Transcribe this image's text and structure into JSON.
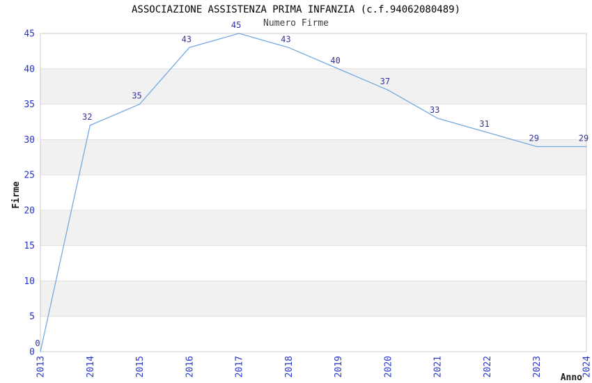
{
  "chart_data": {
    "type": "line",
    "title": "ASSOCIAZIONE ASSISTENZA PRIMA INFANZIA (c.f.94062080489)",
    "subtitle": "Numero Firme",
    "xlabel": "Anno",
    "ylabel": "Firme",
    "x": [
      2013,
      2014,
      2015,
      2016,
      2017,
      2018,
      2019,
      2020,
      2021,
      2022,
      2023,
      2024
    ],
    "values": [
      0,
      32,
      35,
      43,
      45,
      43,
      40,
      37,
      33,
      31,
      29,
      29
    ],
    "ylim": [
      0,
      45
    ],
    "yticks": [
      0,
      5,
      10,
      15,
      20,
      25,
      30,
      35,
      40,
      45
    ],
    "grid": "alternating-horizontal-bands",
    "legend": "none",
    "marker": "none",
    "colors": {
      "line": "#74a9e0",
      "tick_label": "#2633cc",
      "data_label": "#333399",
      "band": "#f1f1f1",
      "grid_line": "#e0e0e0",
      "border": "#cccccc",
      "title": "#000000",
      "subtitle": "#3d3d3d",
      "axis_label": "#1a1a1a",
      "background": "#ffffff"
    }
  }
}
